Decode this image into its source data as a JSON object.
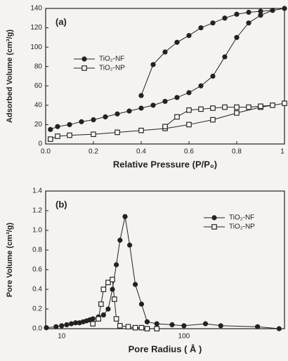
{
  "chart_data": [
    {
      "type": "line",
      "label": "(a)",
      "x_label": "Relative Pressure (P/P₀)",
      "y_label": "Adsorbed Volume (cm³/g)",
      "xlim": [
        0,
        1
      ],
      "ylim": [
        0,
        140
      ],
      "xticks": [
        {
          "value": 0,
          "label": "0.0"
        },
        0.2,
        0.4,
        0.6,
        0.8,
        1
      ],
      "yticks": [
        0,
        20,
        40,
        60,
        80,
        100,
        120,
        140
      ],
      "legend": "upper left",
      "series": [
        {
          "name": "TiO₂-NF",
          "color": "#222222",
          "marker": "circle",
          "x": [
            0.02,
            0.05,
            0.1,
            0.15,
            0.2,
            0.25,
            0.3,
            0.35,
            0.4,
            0.45,
            0.5,
            0.55,
            0.6,
            0.65,
            0.7,
            0.75,
            0.8,
            0.85,
            0.9,
            0.95,
            1.0,
            0.95,
            0.9,
            0.85,
            0.8,
            0.75,
            0.7,
            0.65,
            0.6,
            0.55,
            0.5,
            0.45,
            0.4
          ],
          "values": [
            15,
            18,
            20,
            23,
            25,
            28,
            31,
            34,
            37,
            40,
            44,
            48,
            53,
            60,
            70,
            90,
            110,
            125,
            133,
            138,
            140,
            138,
            137,
            136,
            134,
            130,
            125,
            120,
            112,
            105,
            95,
            82,
            50
          ]
        },
        {
          "name": "TiO₂-NP",
          "color": "#222222",
          "marker": "square",
          "x": [
            0.02,
            0.05,
            0.1,
            0.2,
            0.3,
            0.4,
            0.5,
            0.6,
            0.7,
            0.8,
            0.9,
            1.0,
            0.95,
            0.9,
            0.85,
            0.8,
            0.75,
            0.7,
            0.65,
            0.6,
            0.55,
            0.5
          ],
          "values": [
            5,
            8,
            9,
            10,
            12,
            14,
            16,
            20,
            25,
            32,
            38,
            42,
            40,
            39,
            38,
            38,
            38,
            37,
            36,
            35,
            28,
            18
          ]
        }
      ]
    },
    {
      "type": "line",
      "label": "(b)",
      "x_label": "Pore Radius ( Å )",
      "y_label": "Pore Volume (cm³/g)",
      "xlim": [
        7.4,
        664
      ],
      "ylim": [
        0,
        1.4
      ],
      "xscale": "log",
      "xticks": [
        10,
        100
      ],
      "yticks": [
        {
          "value": 0,
          "label": "0.0"
        },
        0.2,
        0.4,
        0.6,
        0.8,
        {
          "value": 1,
          "label": "1.0"
        },
        1.2,
        1.4
      ],
      "legend": "upper right",
      "series": [
        {
          "name": "TiO₂-NF",
          "color": "#222222",
          "marker": "circle",
          "x": [
            7.5,
            9,
            10,
            11,
            12,
            13,
            14,
            15,
            16,
            17,
            18,
            20,
            22,
            24,
            26,
            28,
            30,
            33,
            36,
            40,
            45,
            50,
            60,
            80,
            100,
            150,
            200,
            400,
            600
          ],
          "values": [
            0.01,
            0.02,
            0.03,
            0.04,
            0.05,
            0.06,
            0.06,
            0.07,
            0.08,
            0.09,
            0.1,
            0.12,
            0.14,
            0.2,
            0.4,
            0.65,
            0.9,
            1.14,
            0.85,
            0.45,
            0.25,
            0.07,
            0.05,
            0.04,
            0.03,
            0.05,
            0.03,
            0.02,
            0
          ]
        },
        {
          "name": "TiO₂-NP",
          "color": "#222222",
          "marker": "square",
          "x": [
            18,
            20,
            21,
            22,
            24,
            26,
            27,
            28,
            30,
            35,
            40,
            45,
            50,
            60
          ],
          "values": [
            0.05,
            0.1,
            0.25,
            0.4,
            0.47,
            0.5,
            0.3,
            0.1,
            0.03,
            0.02,
            0.01,
            0.01,
            0,
            0
          ]
        }
      ]
    }
  ]
}
